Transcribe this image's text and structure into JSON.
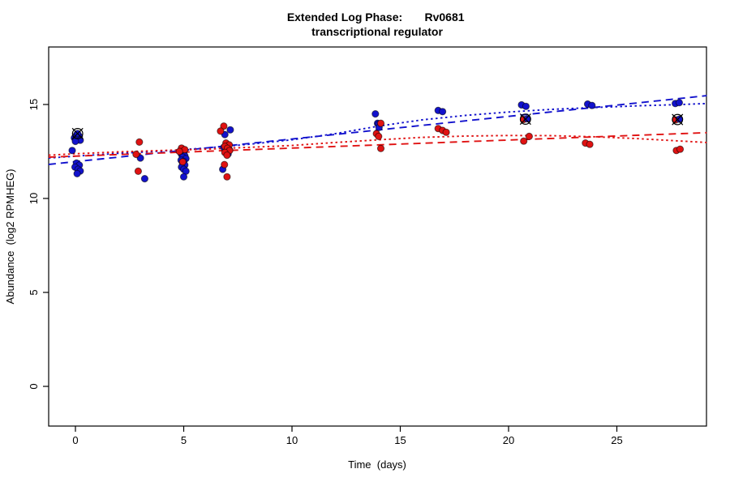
{
  "title": {
    "phase": "Extended Log Phase:",
    "gene": "Rv0681",
    "line2": "transcriptional regulator"
  },
  "axes": {
    "x_label": "Time  (days)",
    "y_label": "Abundance  (log2 RPMHEG)",
    "x_ticks": [
      0,
      5,
      10,
      15,
      20,
      25
    ],
    "y_ticks": [
      0,
      5,
      10,
      15
    ]
  },
  "colors": {
    "blue": "#1212cd",
    "red": "#e01212",
    "frame": "#000000"
  },
  "chart_data": {
    "type": "scatter",
    "title": "Extended Log Phase: Rv0681 transcriptional regulator",
    "xlabel": "Time (days)",
    "ylabel": "Abundance (log2 RPMHEG)",
    "xlim": [
      -1.24,
      29.15
    ],
    "ylim": [
      -2.1,
      18.1
    ],
    "grid": false,
    "legend": "none",
    "series": [
      {
        "name": "blue-points",
        "color": "#1212cd",
        "points": [
          [
            0.05,
            13.38
          ],
          [
            0.18,
            13.3
          ],
          [
            -0.05,
            13.22
          ],
          [
            0.1,
            13.14
          ],
          [
            0.22,
            13.1
          ],
          [
            0.0,
            13.04
          ],
          [
            -0.15,
            12.55
          ],
          [
            0.05,
            11.88
          ],
          [
            0.18,
            11.77
          ],
          [
            -0.02,
            11.67
          ],
          [
            0.12,
            11.55
          ],
          [
            0.22,
            11.46
          ],
          [
            0.08,
            11.32
          ],
          [
            3.0,
            12.15
          ],
          [
            3.2,
            11.05
          ],
          [
            4.85,
            12.5
          ],
          [
            5.0,
            12.45
          ],
          [
            4.9,
            12.35
          ],
          [
            5.05,
            12.27
          ],
          [
            4.95,
            12.2
          ],
          [
            5.1,
            12.12
          ],
          [
            4.88,
            12.04
          ],
          [
            5.0,
            11.97
          ],
          [
            4.95,
            11.87
          ],
          [
            5.05,
            11.78
          ],
          [
            4.9,
            11.67
          ],
          [
            5.0,
            11.55
          ],
          [
            5.1,
            11.45
          ],
          [
            5.0,
            11.15
          ],
          [
            7.15,
            13.65
          ],
          [
            6.9,
            13.4
          ],
          [
            7.0,
            12.85
          ],
          [
            6.85,
            12.72
          ],
          [
            7.1,
            12.6
          ],
          [
            6.95,
            12.5
          ],
          [
            7.05,
            12.37
          ],
          [
            6.8,
            11.55
          ],
          [
            13.85,
            14.5
          ],
          [
            13.95,
            14.0
          ],
          [
            14.0,
            13.95
          ],
          [
            14.02,
            13.78
          ],
          [
            16.75,
            14.68
          ],
          [
            16.95,
            14.62
          ],
          [
            20.6,
            14.98
          ],
          [
            20.8,
            14.9
          ],
          [
            23.65,
            15.02
          ],
          [
            23.85,
            14.95
          ],
          [
            27.7,
            15.05
          ],
          [
            27.88,
            15.1
          ]
        ]
      },
      {
        "name": "red-points",
        "color": "#e01212",
        "points": [
          [
            2.95,
            13.0
          ],
          [
            2.8,
            12.35
          ],
          [
            2.9,
            11.45
          ],
          [
            4.9,
            12.68
          ],
          [
            5.05,
            12.6
          ],
          [
            4.8,
            12.5
          ],
          [
            4.95,
            11.95
          ],
          [
            6.85,
            13.85
          ],
          [
            6.7,
            13.58
          ],
          [
            6.95,
            12.95
          ],
          [
            7.1,
            12.85
          ],
          [
            6.9,
            12.77
          ],
          [
            7.02,
            12.67
          ],
          [
            7.12,
            12.55
          ],
          [
            6.9,
            12.45
          ],
          [
            7.0,
            12.3
          ],
          [
            6.88,
            11.8
          ],
          [
            7.0,
            11.15
          ],
          [
            14.1,
            14.0
          ],
          [
            13.9,
            13.45
          ],
          [
            14.0,
            13.3
          ],
          [
            14.1,
            12.66
          ],
          [
            16.75,
            13.72
          ],
          [
            16.95,
            13.62
          ],
          [
            17.12,
            13.52
          ],
          [
            20.7,
            13.05
          ],
          [
            20.95,
            13.3
          ],
          [
            23.55,
            12.95
          ],
          [
            23.75,
            12.88
          ],
          [
            27.75,
            12.55
          ],
          [
            27.92,
            12.62
          ]
        ]
      }
    ],
    "flagged_points": [
      {
        "day": 0.1,
        "value": 13.45,
        "dot": "blue"
      },
      {
        "day": 20.78,
        "value": 14.22,
        "dot": "both"
      },
      {
        "day": 27.8,
        "value": 14.2,
        "dot": "both"
      }
    ],
    "trend_lines": [
      {
        "name": "blue-linear-fit",
        "color": "#1212cd",
        "style": "dashed",
        "points": [
          [
            -1.24,
            11.81
          ],
          [
            29.15,
            15.47
          ]
        ]
      },
      {
        "name": "blue-loess-fit",
        "color": "#1212cd",
        "style": "dotted",
        "points": [
          [
            -1.24,
            12.15
          ],
          [
            0,
            12.25
          ],
          [
            2,
            12.4
          ],
          [
            4,
            12.52
          ],
          [
            6,
            12.68
          ],
          [
            8,
            12.88
          ],
          [
            10,
            13.12
          ],
          [
            12,
            13.45
          ],
          [
            14,
            13.85
          ],
          [
            16,
            14.18
          ],
          [
            18,
            14.42
          ],
          [
            20,
            14.6
          ],
          [
            22,
            14.74
          ],
          [
            24,
            14.84
          ],
          [
            26,
            14.93
          ],
          [
            28,
            15.0
          ],
          [
            29.15,
            15.05
          ]
        ]
      },
      {
        "name": "red-linear-fit",
        "color": "#e01212",
        "style": "dashed",
        "points": [
          [
            -1.24,
            12.2
          ],
          [
            29.15,
            13.5
          ]
        ]
      },
      {
        "name": "red-loess-fit",
        "color": "#e01212",
        "style": "dotted",
        "points": [
          [
            -1.24,
            12.3
          ],
          [
            0,
            12.38
          ],
          [
            2,
            12.48
          ],
          [
            4,
            12.55
          ],
          [
            6,
            12.62
          ],
          [
            8,
            12.72
          ],
          [
            10,
            12.82
          ],
          [
            12,
            12.98
          ],
          [
            14,
            13.12
          ],
          [
            16,
            13.25
          ],
          [
            18,
            13.32
          ],
          [
            20,
            13.35
          ],
          [
            22,
            13.34
          ],
          [
            24,
            13.28
          ],
          [
            26,
            13.18
          ],
          [
            28,
            13.05
          ],
          [
            29.15,
            12.98
          ]
        ]
      }
    ]
  }
}
